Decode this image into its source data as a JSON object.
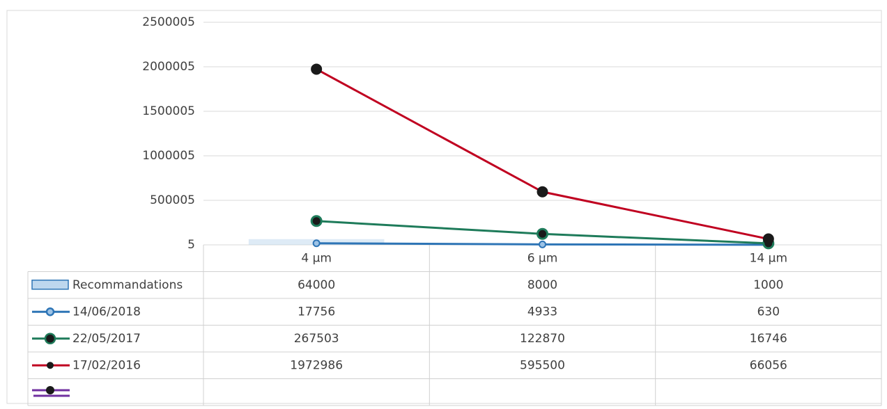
{
  "chart_data": {
    "type": "line",
    "categories": [
      "4 µm",
      "6 µm",
      "14 µm"
    ],
    "series": [
      {
        "name": "Recommandations",
        "type": "bar",
        "color": "#bdd7ee",
        "values": [
          64000,
          8000,
          1000
        ]
      },
      {
        "name": "14/06/2018",
        "color": "#2e75b6",
        "values": [
          17756,
          4933,
          630
        ]
      },
      {
        "name": "22/05/2017",
        "color": "#1e7b5a",
        "values": [
          267503,
          122870,
          16746
        ]
      },
      {
        "name": "17/02/2016",
        "color": "#c00020",
        "values": [
          1972986,
          595500,
          66056
        ]
      }
    ],
    "ylim": [
      5,
      2500005
    ],
    "yticks": [
      5,
      500005,
      1000005,
      1500005,
      2000005,
      2500005
    ],
    "grid": true
  }
}
